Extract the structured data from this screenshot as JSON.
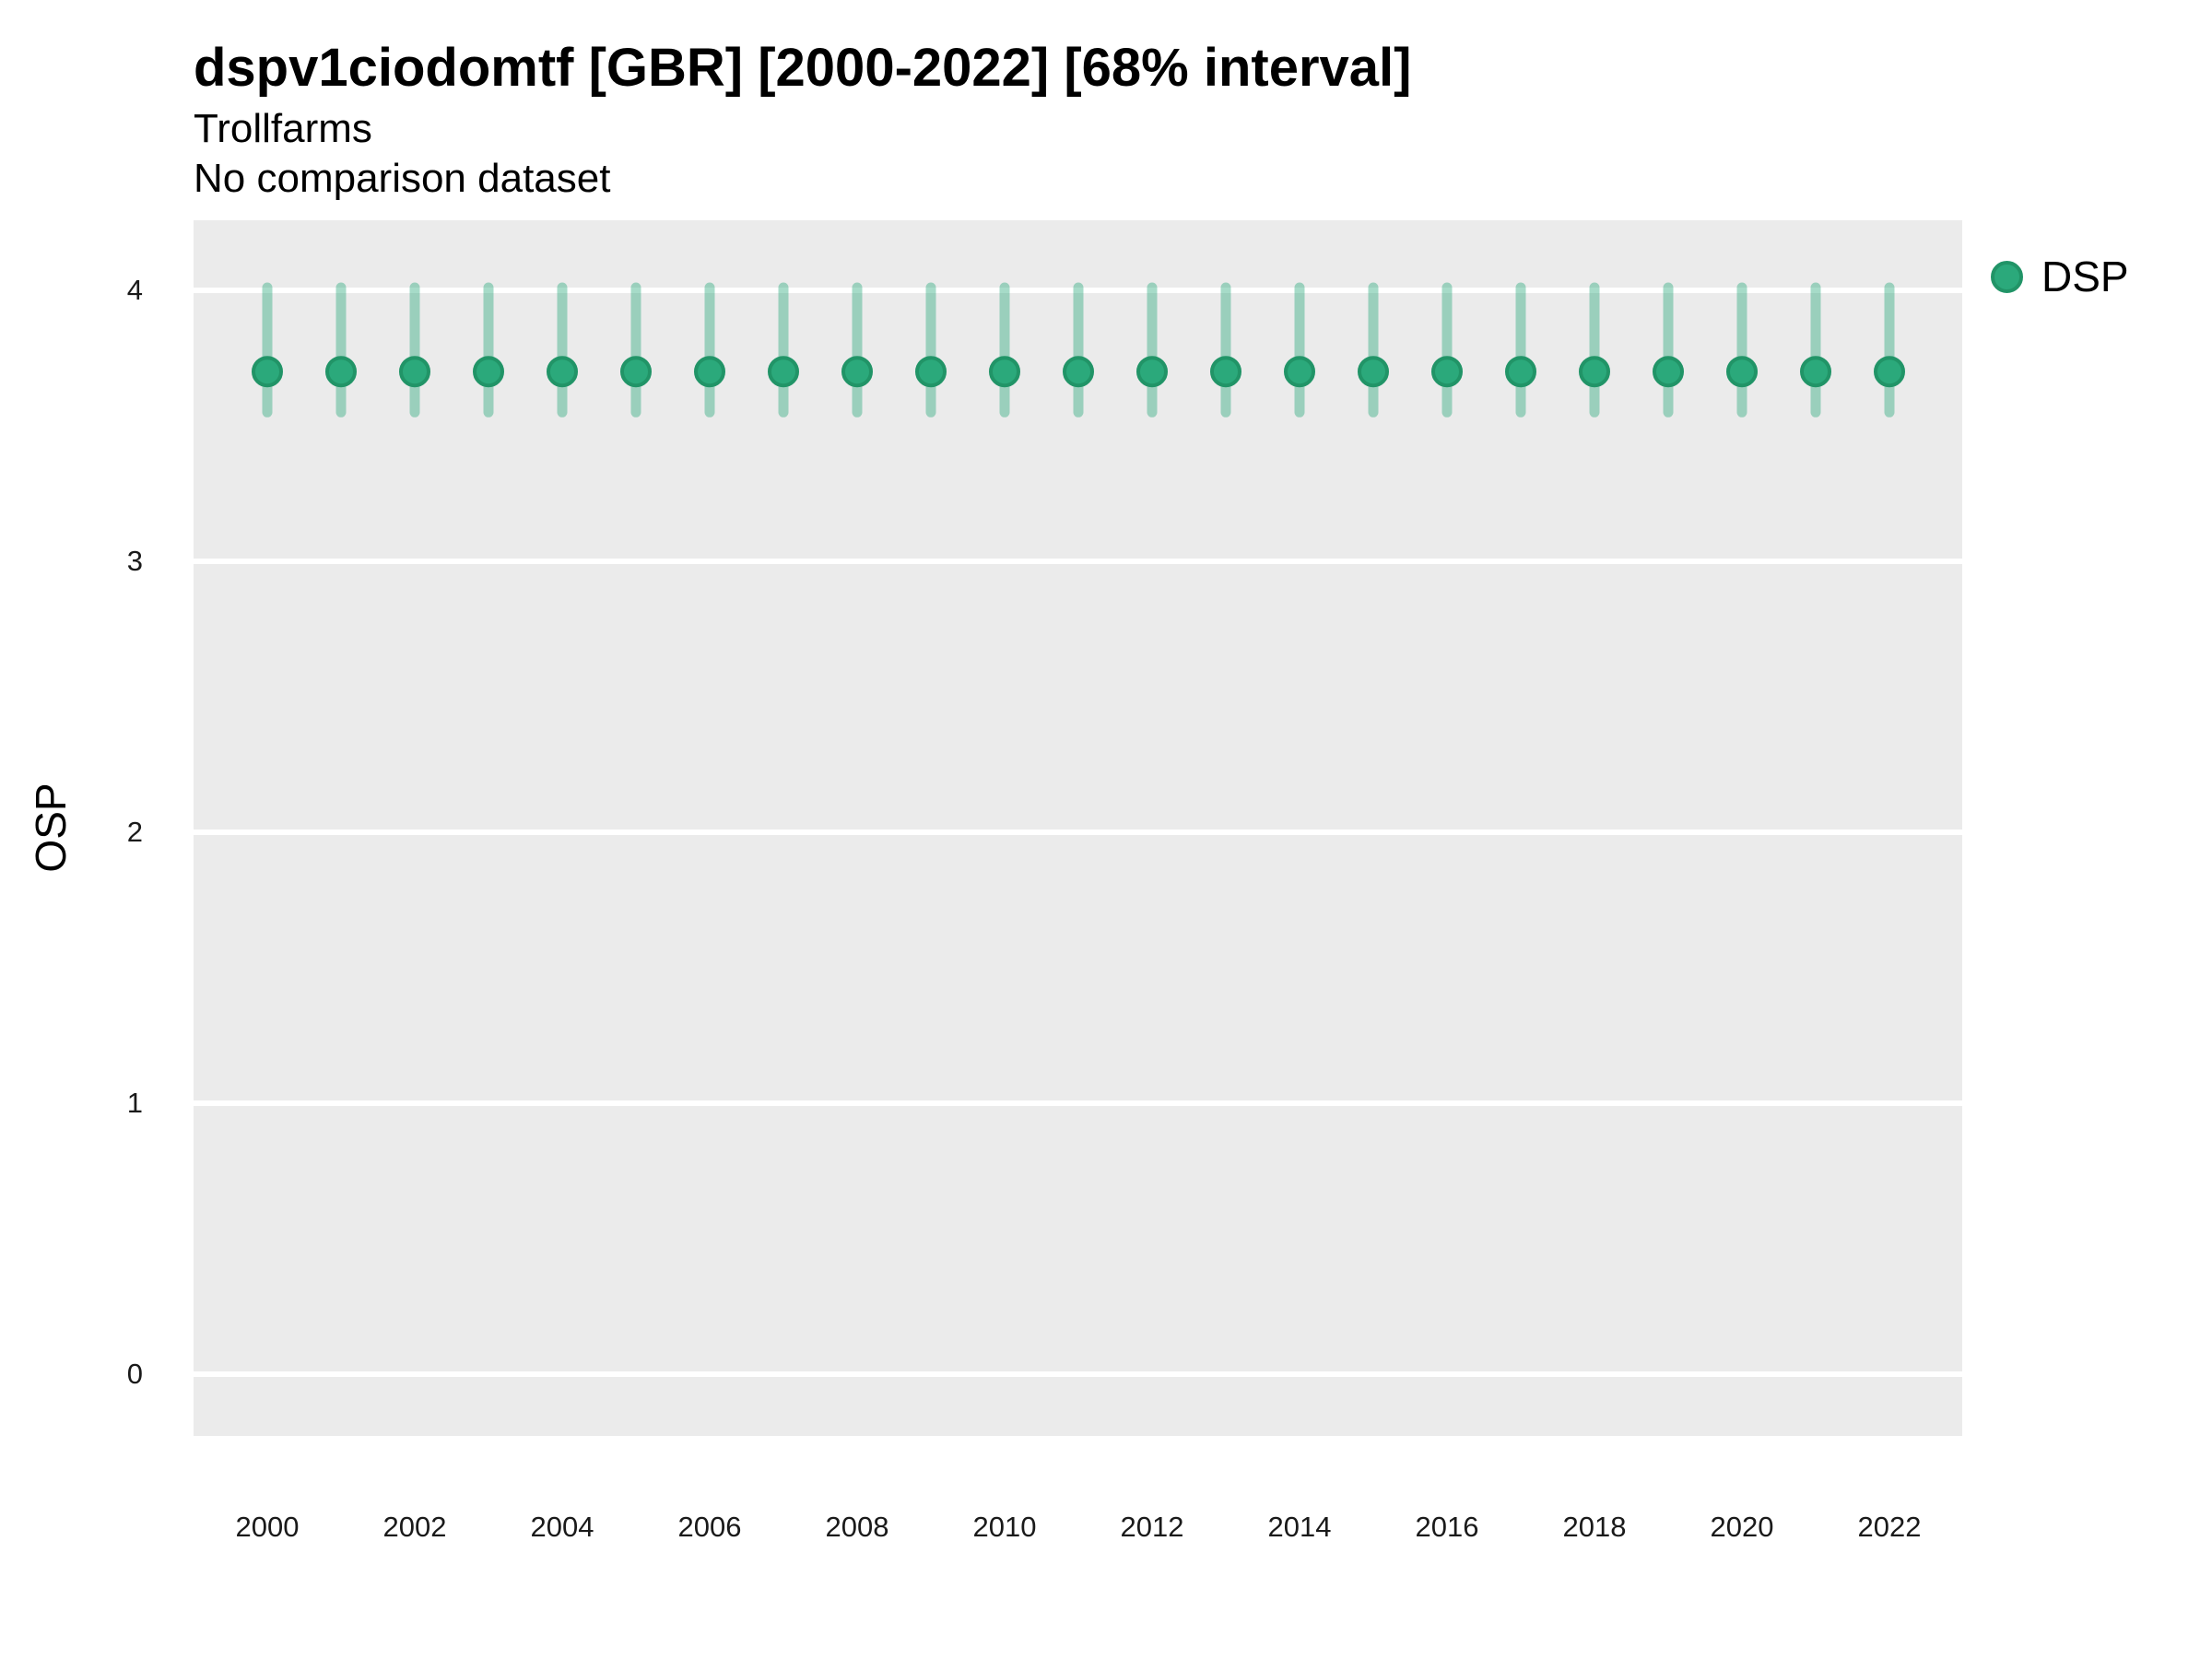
{
  "header": {
    "title": "dspv1ciodomtf [GBR] [2000-2022] [68% interval]",
    "subtitle": "Trollfarms",
    "note": "No comparison dataset"
  },
  "chart_data": {
    "type": "scatter",
    "title": "dspv1ciodomtf [GBR] [2000-2022] [68% interval]",
    "subtitle": "Trollfarms",
    "note": "No comparison dataset",
    "xlabel": "",
    "ylabel": "OSP",
    "interval": "68%",
    "x_ticks": [
      2000,
      2002,
      2004,
      2006,
      2008,
      2010,
      2012,
      2014,
      2016,
      2018,
      2020,
      2022
    ],
    "y_ticks": [
      0,
      1,
      2,
      3,
      4
    ],
    "xlim": [
      1999,
      2023
    ],
    "ylim": [
      -0.23,
      4.26
    ],
    "grid": {
      "horizontal_major": true,
      "vertical": false,
      "color": "#FFFFFF"
    },
    "panel_bg": "#EBEBEB",
    "legend": {
      "position": "right-top",
      "entries": [
        {
          "label": "DSP",
          "color": "#2BA97B"
        }
      ]
    },
    "series": [
      {
        "name": "DSP",
        "mode": "markers+errorbars",
        "x": [
          2000,
          2001,
          2002,
          2003,
          2004,
          2005,
          2006,
          2007,
          2008,
          2009,
          2010,
          2011,
          2012,
          2013,
          2014,
          2015,
          2016,
          2017,
          2018,
          2019,
          2020,
          2021,
          2022
        ],
        "y": [
          3.7,
          3.7,
          3.7,
          3.7,
          3.7,
          3.7,
          3.7,
          3.7,
          3.7,
          3.7,
          3.7,
          3.7,
          3.7,
          3.7,
          3.7,
          3.7,
          3.7,
          3.7,
          3.7,
          3.7,
          3.7,
          3.7,
          3.7
        ],
        "y_lo": [
          3.55,
          3.55,
          3.55,
          3.55,
          3.55,
          3.55,
          3.55,
          3.55,
          3.55,
          3.55,
          3.55,
          3.55,
          3.55,
          3.55,
          3.55,
          3.55,
          3.55,
          3.55,
          3.55,
          3.55,
          3.55,
          3.55,
          3.55
        ],
        "y_hi": [
          4.01,
          4.01,
          4.01,
          4.01,
          4.01,
          4.01,
          4.01,
          4.01,
          4.01,
          4.01,
          4.01,
          4.01,
          4.01,
          4.01,
          4.01,
          4.01,
          4.01,
          4.01,
          4.01,
          4.01,
          4.01,
          4.01,
          4.01
        ]
      }
    ]
  },
  "colors": {
    "marker": "#2BA97B",
    "marker_outline": "#219467",
    "errorbar": "rgba(43,169,123,0.42)",
    "panel": "#EBEBEB",
    "grid": "#FFFFFF",
    "title_text": "#000000",
    "tick_text": "#1A1A1A"
  }
}
